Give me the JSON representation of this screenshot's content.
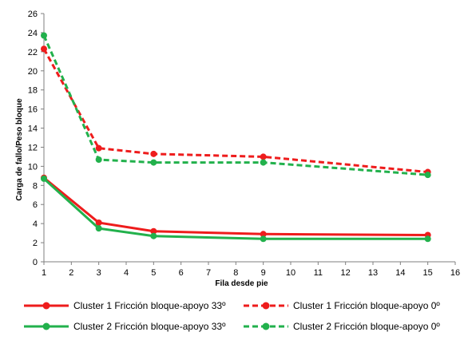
{
  "chart_data": {
    "type": "line",
    "title": "",
    "xlabel": "Fila desde pie",
    "ylabel": "Carga de fallo/Peso bloque",
    "xlim": [
      1,
      16
    ],
    "ylim": [
      0,
      26
    ],
    "xticks": [
      1,
      2,
      3,
      4,
      5,
      6,
      7,
      8,
      9,
      10,
      11,
      12,
      13,
      14,
      15,
      16
    ],
    "yticks": [
      0,
      2,
      4,
      6,
      8,
      10,
      12,
      14,
      16,
      18,
      20,
      22,
      24,
      26
    ],
    "grid": false,
    "legend_position": "bottom",
    "series": [
      {
        "name": "Cluster 1 Fricción bloque-apoyo 33º",
        "color": "#ee1c1c",
        "dash": "solid",
        "x": [
          1,
          3,
          5,
          9,
          15
        ],
        "y": [
          8.8,
          4.1,
          3.2,
          2.9,
          2.8
        ]
      },
      {
        "name": "Cluster 1 Fricción bloque-apoyo 0º",
        "color": "#ee1c1c",
        "dash": "dashed",
        "x": [
          1,
          3,
          5,
          9,
          15
        ],
        "y": [
          22.3,
          11.9,
          11.3,
          11.0,
          9.4
        ]
      },
      {
        "name": "Cluster 2 Fricción bloque-apoyo 33º",
        "color": "#22b14c",
        "dash": "solid",
        "x": [
          1,
          3,
          5,
          9,
          15
        ],
        "y": [
          8.7,
          3.5,
          2.7,
          2.4,
          2.4
        ]
      },
      {
        "name": "Cluster 2 Fricción bloque-apoyo 0º",
        "color": "#22b14c",
        "dash": "dashed",
        "x": [
          1,
          3,
          5,
          9,
          15
        ],
        "y": [
          23.7,
          10.7,
          10.4,
          10.4,
          9.1
        ]
      }
    ]
  }
}
